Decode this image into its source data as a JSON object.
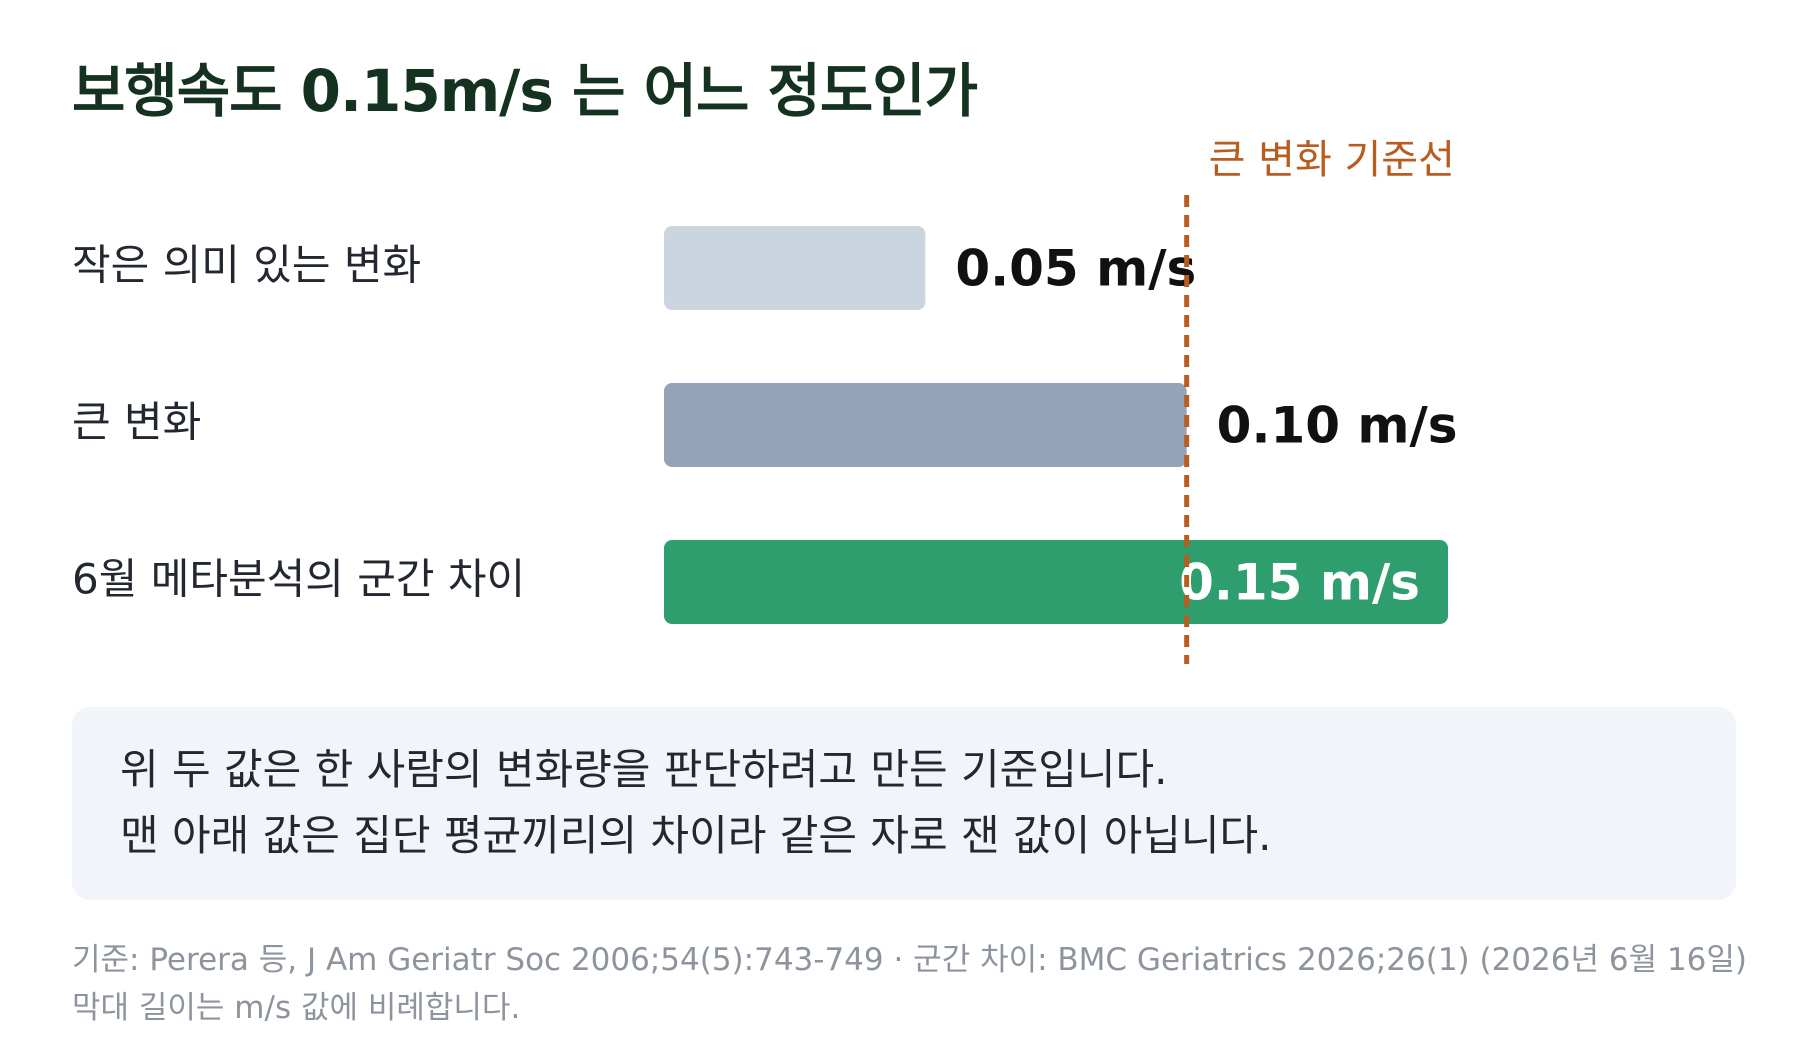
{
  "title": "보행속도 0.15m/s 는 어느 정도인가",
  "chart_data": {
    "type": "bar",
    "orientation": "horizontal",
    "categories": [
      "작은 의미 있는 변화",
      "큰 변화",
      "6월 메타분석의 군간 차이"
    ],
    "values": [
      0.05,
      0.1,
      0.15
    ],
    "value_labels": [
      "0.05 m/s",
      "0.10 m/s",
      "0.15 m/s"
    ],
    "bar_colors": [
      "#cbd5e0",
      "#94a3b8",
      "#2f9e6e"
    ],
    "xlim": [
      0,
      0.15
    ],
    "reference_line": {
      "value": 0.1,
      "label": "큰 변화 기준선",
      "color": "#b85c1f"
    }
  },
  "note": {
    "line1": "위 두 값은 한 사람의 변화량을 판단하려고 만든 기준입니다.",
    "line2": "맨 아래 값은 집단 평균끼리의 차이라 같은 자로 잰 값이 아닙니다."
  },
  "footer": {
    "line1": "기준: Perera 등, J Am Geriatr Soc 2006;54(5):743-749 · 군간 차이: BMC Geriatrics 2026;26(1) (2026년 6월 16일)",
    "line2": "막대 길이는 m/s 값에 비례합니다."
  },
  "colors": {
    "title": "#14321f",
    "value_text": "#111111",
    "inside_label": "#ffffff",
    "note_bg": "#f1f4f8",
    "footer": "#8e949d"
  }
}
